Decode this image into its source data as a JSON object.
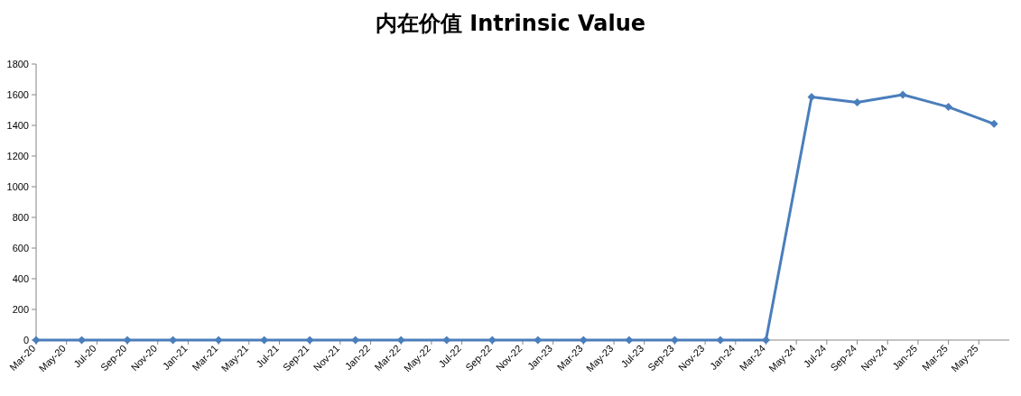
{
  "chart_data": {
    "type": "line",
    "title": "内在价值 Intrinsic Value",
    "x": [
      "2020-03",
      "2020-06",
      "2020-09",
      "2020-12",
      "2021-03",
      "2021-06",
      "2021-09",
      "2021-12",
      "2022-03",
      "2022-06",
      "2022-09",
      "2022-12",
      "2023-03",
      "2023-06",
      "2023-09",
      "2023-12",
      "2024-03",
      "2024-06",
      "2024-09",
      "2024-12",
      "2025-03",
      "2025-06"
    ],
    "series": [
      {
        "color": "#4a7ebb",
        "values": [
          0,
          0,
          0,
          0,
          0,
          0,
          0,
          0,
          0,
          0,
          0,
          0,
          0,
          0,
          0,
          0,
          0,
          1585,
          1550,
          1600,
          1520,
          1410
        ]
      }
    ],
    "marker": "diamond",
    "line_style": "solid",
    "grid": false,
    "ylim": [
      0,
      1800
    ],
    "yticks": [
      0,
      200,
      400,
      600,
      800,
      1000,
      1200,
      1400,
      1600,
      1800
    ],
    "xlim": [
      "2020-03",
      "2025-07"
    ],
    "xticks": [
      {
        "value": "2020-03",
        "label": "Mar-20"
      },
      {
        "value": "2020-05",
        "label": "May-20"
      },
      {
        "value": "2020-07",
        "label": "Jul-20"
      },
      {
        "value": "2020-09",
        "label": "Sep-20"
      },
      {
        "value": "2020-11",
        "label": "Nov-20"
      },
      {
        "value": "2021-01",
        "label": "Jan-21"
      },
      {
        "value": "2021-03",
        "label": "Mar-21"
      },
      {
        "value": "2021-05",
        "label": "May-21"
      },
      {
        "value": "2021-07",
        "label": "Jul-21"
      },
      {
        "value": "2021-09",
        "label": "Sep-21"
      },
      {
        "value": "2021-11",
        "label": "Nov-21"
      },
      {
        "value": "2022-01",
        "label": "Jan-22"
      },
      {
        "value": "2022-03",
        "label": "Mar-22"
      },
      {
        "value": "2022-05",
        "label": "May-22"
      },
      {
        "value": "2022-07",
        "label": "Jul-22"
      },
      {
        "value": "2022-09",
        "label": "Sep-22"
      },
      {
        "value": "2022-11",
        "label": "Nov-22"
      },
      {
        "value": "2023-01",
        "label": "Jan-23"
      },
      {
        "value": "2023-03",
        "label": "Mar-23"
      },
      {
        "value": "2023-05",
        "label": "May-23"
      },
      {
        "value": "2023-07",
        "label": "Jul-23"
      },
      {
        "value": "2023-09",
        "label": "Sep-23"
      },
      {
        "value": "2023-11",
        "label": "Nov-23"
      },
      {
        "value": "2024-01",
        "label": "Jan-24"
      },
      {
        "value": "2024-03",
        "label": "Mar-24"
      },
      {
        "value": "2024-05",
        "label": "May-24"
      },
      {
        "value": "2024-07",
        "label": "Jul-24"
      },
      {
        "value": "2024-09",
        "label": "Sep-24"
      },
      {
        "value": "2024-11",
        "label": "Nov-24"
      },
      {
        "value": "2025-01",
        "label": "Jan-25"
      },
      {
        "value": "2025-03",
        "label": "Mar-25"
      },
      {
        "value": "2025-05",
        "label": "May-25"
      }
    ]
  }
}
